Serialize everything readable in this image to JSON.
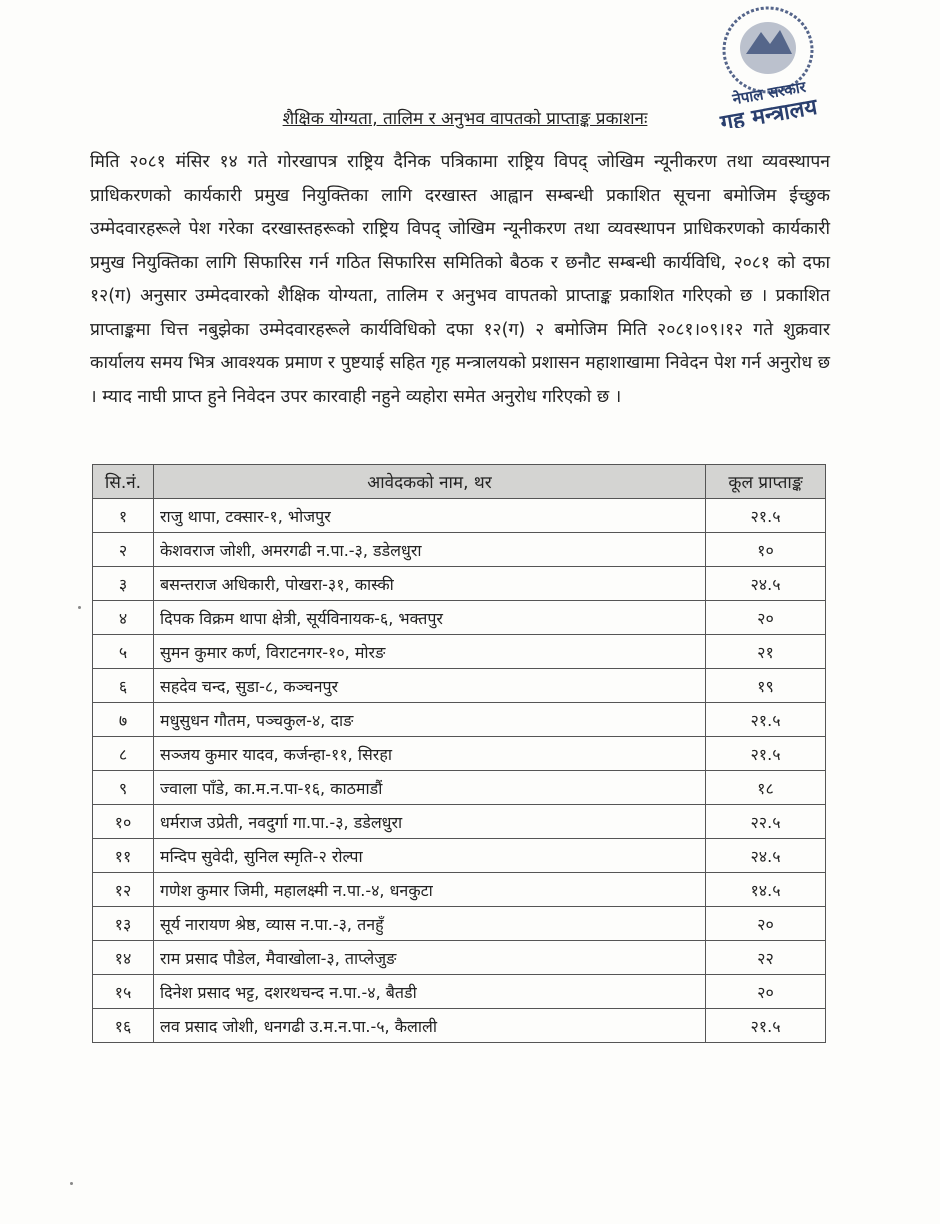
{
  "stamp": {
    "top_text": "नेपाल सरकार",
    "bottom_text": "गृह मन्त्रालय",
    "color": "#2a3f6e"
  },
  "title": "शैक्षिक योग्यता, तालिम र अनुभव वापतको प्राप्ताङ्क प्रकाशनः",
  "body": "मिति २०८१ मंसिर १४ गते गोरखापत्र राष्ट्रिय दैनिक पत्रिकामा राष्ट्रिय विपद् जोखिम न्यूनीकरण तथा व्यवस्थापन प्राधिकरणको कार्यकारी प्रमुख नियुक्तिका लागि दरखास्त आह्वान सम्बन्धी प्रकाशित सूचना बमोजिम ईच्छुक उम्मेदवारहरूले पेश गरेका दरखास्तहरूको राष्ट्रिय विपद् जोखिम न्यूनीकरण तथा व्यवस्थापन प्राधिकरणको कार्यकारी प्रमुख नियुक्तिका लागि सिफारिस गर्न गठित सिफारिस समितिको बैठक र छनौट सम्बन्धी कार्यविधि, २०८१ को दफा १२(ग) अनुसार उम्मेदवारको शैक्षिक योग्यता, तालिम र अनुभव वापतको प्राप्ताङ्क प्रकाशित गरिएको छ । प्रकाशित प्राप्ताङ्कमा चित्त नबुझेका उम्मेदवारहरूले कार्यविधिको दफा १२(ग) २ बमोजिम मिति २०८१।०९।१२ गते शुक्रवार कार्यालय समय भित्र आवश्यक प्रमाण र पुष्टयाई सहित गृह मन्त्रालयको प्रशासन महाशाखामा निवेदन पेश गर्न अनुरोध छ । म्याद नाघी प्राप्त हुने निवेदन उपर कारवाही नहुने व्यहोरा समेत अनुरोध गरिएको छ ।",
  "table": {
    "headers": [
      "सि.नं.",
      "आवेदकको नाम, थर",
      "कूल प्राप्ताङ्क"
    ],
    "rows": [
      [
        "१",
        "राजु थापा, टक्सार-१, भोजपुर",
        "२१.५"
      ],
      [
        "२",
        "केशवराज जोशी, अमरगढी न.पा.-३, डडेलधुरा",
        "१०"
      ],
      [
        "३",
        "बसन्तराज अधिकारी, पोखरा-३१, कास्की",
        "२४.५"
      ],
      [
        "४",
        "दिपक विक्रम थापा क्षेत्री, सूर्यविनायक-६, भक्तपुर",
        "२०"
      ],
      [
        "५",
        "सुमन कुमार कर्ण, विराटनगर-१०, मोरङ",
        "२१"
      ],
      [
        "६",
        "सहदेव चन्द, सुडा-८, कञ्चनपुर",
        "१९"
      ],
      [
        "७",
        "मधुसुधन गौतम, पञ्चकुल-४, दाङ",
        "२१.५"
      ],
      [
        "८",
        "सञ्जय कुमार यादव, कर्जन्हा-११, सिरहा",
        "२१.५"
      ],
      [
        "९",
        "ज्वाला पाँडे, का.म.न.पा-१६, काठमाडौं",
        "१८"
      ],
      [
        "१०",
        "धर्मराज उप्रेती, नवदुर्गा गा.पा.-३, डडेलधुरा",
        "२२.५"
      ],
      [
        "११",
        "मन्दिप सुवेदी, सुनिल स्मृति-२ रोल्पा",
        "२४.५"
      ],
      [
        "१२",
        "गणेश कुमार जिमी, महालक्ष्मी न.पा.-४, धनकुटा",
        "१४.५"
      ],
      [
        "१३",
        "सूर्य नारायण श्रेष्ठ, व्यास न.पा.-३, तनहुँ",
        "२०"
      ],
      [
        "१४",
        "राम प्रसाद पौडेल, मैवाखोला-३, ताप्लेजुङ",
        "२२"
      ],
      [
        "१५",
        "दिनेश प्रसाद भट्ट, दशरथचन्द न.पा.-४, बैतडी",
        "२०"
      ],
      [
        "१६",
        "लव प्रसाद जोशी, धनगढी उ.म.न.पा.-५, कैलाली",
        "२१.५"
      ]
    ]
  }
}
